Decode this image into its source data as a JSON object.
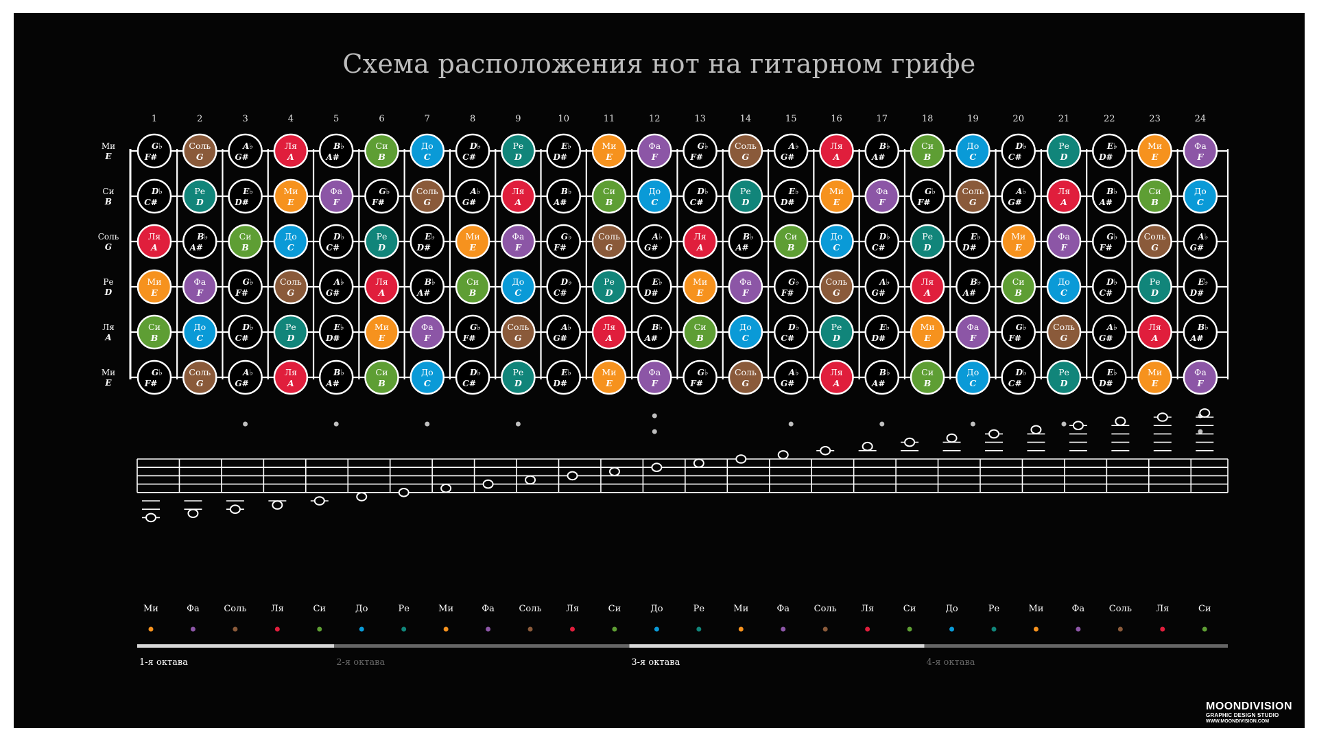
{
  "title": "Схема расположения нот на гитарном грифе",
  "fret_numbers": [
    "1",
    "2",
    "3",
    "4",
    "5",
    "6",
    "7",
    "8",
    "9",
    "10",
    "11",
    "12",
    "13",
    "14",
    "15",
    "16",
    "17",
    "18",
    "19",
    "20",
    "21",
    "22",
    "23",
    "24"
  ],
  "strings": [
    {
      "ru": "Ми",
      "en": "E",
      "start": 5
    },
    {
      "ru": "Си",
      "en": "B",
      "start": 0
    },
    {
      "ru": "Соль",
      "en": "G",
      "start": 8
    },
    {
      "ru": "Ре",
      "en": "D",
      "start": 3
    },
    {
      "ru": "Ля",
      "en": "A",
      "start": 10
    },
    {
      "ru": "Ми",
      "en": "E",
      "start": 5
    }
  ],
  "notes": [
    {
      "ru": "До",
      "en": "C",
      "color": "#0a9ad7"
    },
    {
      "ru": "",
      "en": "D♭",
      "alt": "C#",
      "color": "#000000"
    },
    {
      "ru": "Ре",
      "en": "D",
      "color": "#11857a"
    },
    {
      "ru": "",
      "en": "E♭",
      "alt": "D#",
      "color": "#000000"
    },
    {
      "ru": "Ми",
      "en": "E",
      "color": "#f6921e"
    },
    {
      "ru": "Фа",
      "en": "F",
      "color": "#8c56a6"
    },
    {
      "ru": "",
      "en": "G♭",
      "alt": "F#",
      "color": "#000000"
    },
    {
      "ru": "Соль",
      "en": "G",
      "color": "#8a5a3a"
    },
    {
      "ru": "",
      "en": "A♭",
      "alt": "G#",
      "color": "#000000"
    },
    {
      "ru": "Ля",
      "en": "A",
      "color": "#e01e3c"
    },
    {
      "ru": "",
      "en": "B♭",
      "alt": "A#",
      "color": "#000000"
    },
    {
      "ru": "Си",
      "en": "B",
      "color": "#5e9e34"
    }
  ],
  "inlay_single": [
    3,
    5,
    7,
    9,
    15,
    17,
    19,
    21
  ],
  "inlay_double": [
    12,
    24
  ],
  "staff_notes": [
    "Ми",
    "Фа",
    "Соль",
    "Ля",
    "Си",
    "До",
    "Ре",
    "Ми",
    "Фа",
    "Соль",
    "Ля",
    "Си",
    "До",
    "Ре",
    "Ми",
    "Фа",
    "Соль",
    "Ля",
    "Си",
    "До",
    "Ре",
    "Ми",
    "Фа",
    "Соль",
    "Ля",
    "Си"
  ],
  "staff_colors": [
    "#f6921e",
    "#8c56a6",
    "#8a5a3a",
    "#e01e3c",
    "#5e9e34",
    "#0a9ad7",
    "#11857a",
    "#f6921e",
    "#8c56a6",
    "#8a5a3a",
    "#e01e3c",
    "#5e9e34",
    "#0a9ad7",
    "#11857a",
    "#f6921e",
    "#8c56a6",
    "#8a5a3a",
    "#e01e3c",
    "#5e9e34",
    "#0a9ad7",
    "#11857a",
    "#f6921e",
    "#8c56a6",
    "#8a5a3a",
    "#e01e3c",
    "#5e9e34"
  ],
  "octaves": [
    {
      "label": "1-я октава",
      "text_color": "#ffffff",
      "bar_color": "#d8d8d8",
      "from": 0,
      "to": 5
    },
    {
      "label": "2-я октава",
      "text_color": "#666666",
      "bar_color": "#666666",
      "from": 5,
      "to": 12
    },
    {
      "label": "3-я октава",
      "text_color": "#ffffff",
      "bar_color": "#d8d8d8",
      "from": 12,
      "to": 19
    },
    {
      "label": "4-я октава",
      "text_color": "#666666",
      "bar_color": "#666666",
      "from": 19,
      "to": 26
    }
  ],
  "brand": {
    "name": "MOONDIVISION",
    "tagline": "GRAPHIC DESIGN STUDIO",
    "site": "WWW.MOONDIVISION.COM"
  }
}
